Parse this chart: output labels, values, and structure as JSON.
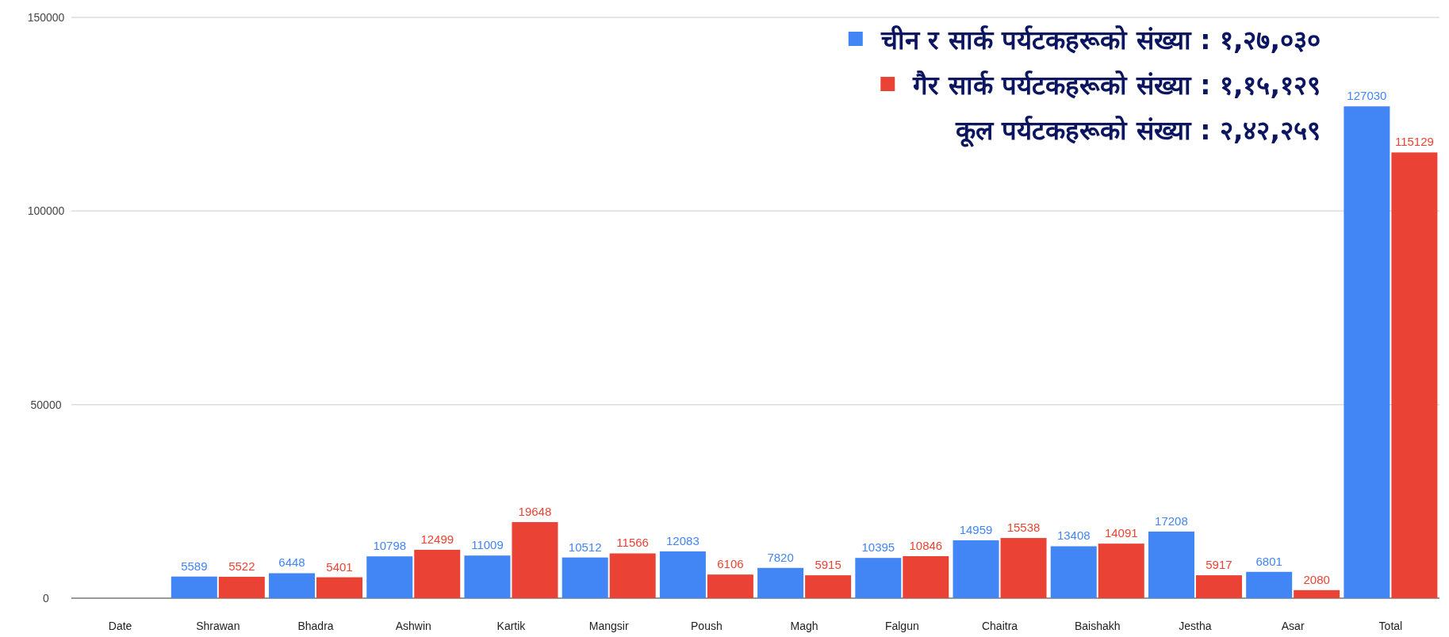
{
  "chart_data": {
    "type": "bar",
    "categories": [
      "Date",
      "Shrawan",
      "Bhadra",
      "Ashwin",
      "Kartik",
      "Mangsir",
      "Poush",
      "Magh",
      "Falgun",
      "Chaitra",
      "Baishakh",
      "Jestha",
      "Asar",
      "Total"
    ],
    "series": [
      {
        "name": "चीन र सार्क पर्यटकहरूको संख्या : १,२७,०३०",
        "color": "#4285f4",
        "values": [
          null,
          5589,
          6448,
          10798,
          11009,
          10512,
          12083,
          7820,
          10395,
          14959,
          13408,
          17208,
          6801,
          127030
        ]
      },
      {
        "name": "गैर सार्क पर्यटकहरूको संख्या : १,१५,१२९",
        "color": "#ea4335",
        "values": [
          null,
          5522,
          5401,
          12499,
          19648,
          11566,
          6106,
          5915,
          10846,
          15538,
          14091,
          5917,
          2080,
          115129
        ]
      }
    ],
    "annotations": [
      "कूल पर्यटकहरूको संख्या : २,४२,२५९"
    ],
    "ylim": [
      0,
      150000
    ],
    "yticks": [
      0,
      50000,
      100000,
      150000
    ],
    "grid": "y",
    "legend": "top right",
    "data_labels": true
  }
}
